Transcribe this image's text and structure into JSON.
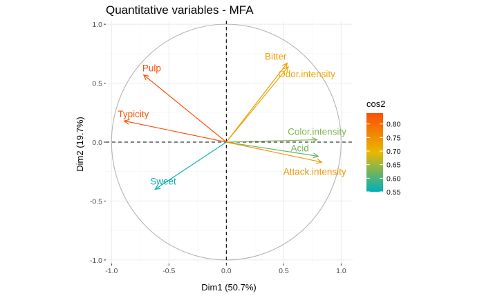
{
  "chart_data": {
    "type": "scatter",
    "subtype": "correlation-circle",
    "title": "Quantitative variables - MFA",
    "xlabel": "Dim1 (50.7%)",
    "ylabel": "Dim2 (19.7%)",
    "xlim": [
      -1.05,
      1.1
    ],
    "ylim": [
      -1.03,
      1.03
    ],
    "x_ticks": [
      -1.0,
      -0.5,
      0.0,
      0.5,
      1.0
    ],
    "y_ticks": [
      -1.0,
      -0.5,
      0.0,
      0.5,
      1.0
    ],
    "x_tick_labels": [
      "-1.0",
      "-0.5",
      "0.0",
      "0.5",
      "1.0"
    ],
    "y_tick_labels": [
      "-1.0",
      "-0.5",
      "0.0",
      "0.5",
      "1.0"
    ],
    "grid": true,
    "unit_circle": true,
    "reference_lines": [
      0,
      0
    ],
    "variables": [
      {
        "name": "Pulp",
        "x": -0.72,
        "y": 0.57,
        "cos2": 0.84,
        "label_x": -0.65,
        "label_y": 0.63
      },
      {
        "name": "Typicity",
        "x": -0.89,
        "y": 0.18,
        "cos2": 0.83,
        "label_x": -0.81,
        "label_y": 0.24
      },
      {
        "name": "Bitter",
        "x": 0.53,
        "y": 0.67,
        "cos2": 0.73,
        "label_x": 0.43,
        "label_y": 0.73
      },
      {
        "name": "Odor.intensity",
        "x": 0.54,
        "y": 0.64,
        "cos2": 0.72,
        "label_x": 0.7,
        "label_y": 0.58
      },
      {
        "name": "Color.intensity",
        "x": 0.79,
        "y": 0.02,
        "cos2": 0.63,
        "label_x": 0.79,
        "label_y": 0.09
      },
      {
        "name": "Acid",
        "x": 0.8,
        "y": -0.12,
        "cos2": 0.62,
        "label_x": 0.64,
        "label_y": -0.05
      },
      {
        "name": "Attack.intensity",
        "x": 0.83,
        "y": -0.17,
        "cos2": 0.74,
        "label_x": 0.77,
        "label_y": -0.25
      },
      {
        "name": "Sweet",
        "x": -0.62,
        "y": -0.4,
        "cos2": 0.56,
        "label_x": -0.55,
        "label_y": -0.33
      }
    ],
    "legend": {
      "title": "cos2",
      "position": "right",
      "min": 0.55,
      "max": 0.84,
      "ticks": [
        0.55,
        0.6,
        0.65,
        0.7,
        0.75,
        0.8
      ],
      "tick_labels": [
        "0.55",
        "0.60",
        "0.65",
        "0.70",
        "0.75",
        "0.80"
      ],
      "gradient_colors": [
        "#00AFBB",
        "#E7B800",
        "#FC4E07"
      ]
    }
  }
}
